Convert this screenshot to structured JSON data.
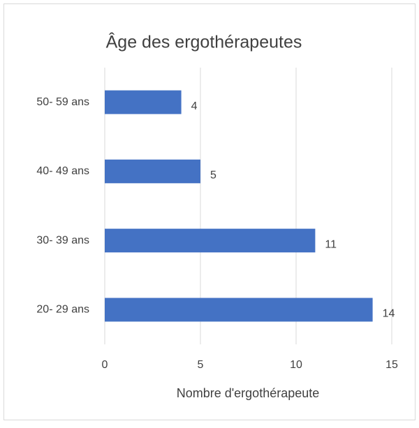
{
  "chart_data": {
    "type": "bar",
    "orientation": "horizontal",
    "title": "Âge des ergothérapeutes",
    "categories": [
      "20- 29 ans",
      "30- 39 ans",
      "40- 49 ans",
      "50- 59 ans"
    ],
    "values": [
      14,
      11,
      5,
      4
    ],
    "color": "#4472c4",
    "xlabel": "Nombre d'ergothérapeute",
    "xlim": [
      0,
      15
    ],
    "xticks": [
      0,
      5,
      10,
      15
    ],
    "grid": true
  }
}
